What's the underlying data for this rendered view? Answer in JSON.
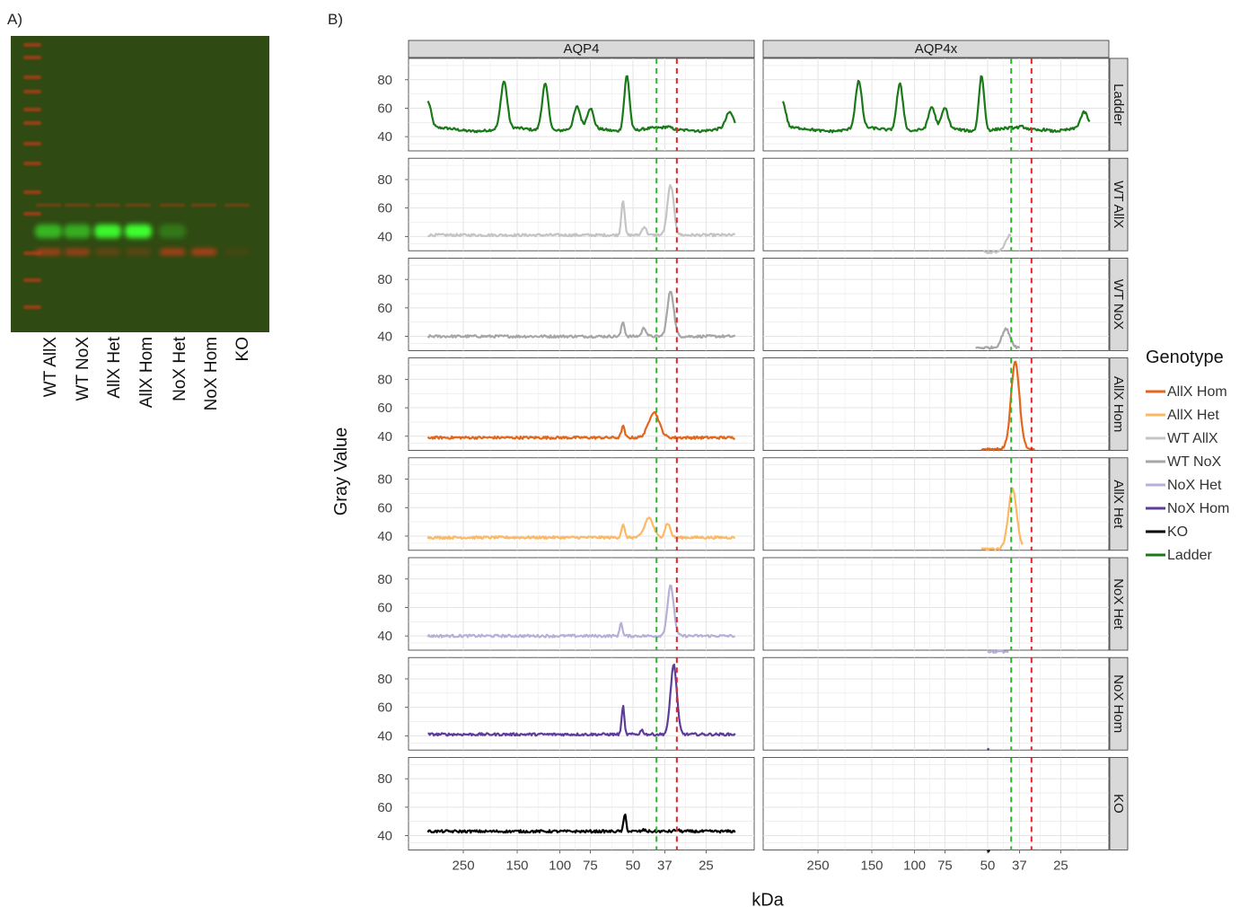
{
  "panel_labels": {
    "a": "A)",
    "b": "B)"
  },
  "gel": {
    "lanes": [
      "WT AllX",
      "WT NoX",
      "AllX Het",
      "AllX Hom",
      "NoX Het",
      "NoX Hom",
      "KO"
    ],
    "background_color": "#2f4a12",
    "red_channel_color": "#d23a1a",
    "green_channel_color": "#3cff2e"
  },
  "chart_data": {
    "type": "line",
    "facet_columns": [
      "AQP4",
      "AQP4x"
    ],
    "facet_rows": [
      "Ladder",
      "WT AllX",
      "WT NoX",
      "AllX Hom",
      "AllX Het",
      "NoX Het",
      "NoX Hom",
      "KO"
    ],
    "xlabel": "kDa",
    "ylabel": "Gray Value",
    "x_ticks": [
      250,
      150,
      100,
      75,
      50,
      37,
      25
    ],
    "x_tick_labels": [
      "250",
      "150",
      "100",
      "75",
      "50",
      "37",
      "25"
    ],
    "y_ticks": [
      40,
      60,
      80
    ],
    "ylim": [
      30,
      95
    ],
    "grid": true,
    "reference_lines": [
      {
        "x": 40,
        "color": "#2db52d",
        "style": "dashed"
      },
      {
        "x": 33,
        "color": "#e3242b",
        "style": "dashed"
      }
    ],
    "legend": {
      "title": "Genotype",
      "position": "right",
      "entries": [
        "AllX Hom",
        "AllX Het",
        "WT AllX",
        "WT NoX",
        "NoX Het",
        "NoX Hom",
        "KO",
        "Ladder"
      ]
    },
    "colors": {
      "Ladder": "#1a7a1a",
      "WT AllX": "#c4c4c4",
      "WT NoX": "#a6a6a6",
      "AllX Hom": "#e2661b",
      "AllX Het": "#fdb863",
      "NoX Het": "#b7b0d6",
      "NoX Hom": "#5e3c99",
      "KO": "#000000"
    },
    "series": [
      {
        "facet": "AQP4",
        "row": "Ladder",
        "baseline": 45,
        "peaks": [
          [
            350,
            64,
            0.03
          ],
          [
            170,
            78,
            0.03
          ],
          [
            115,
            78,
            0.03
          ],
          [
            85,
            60,
            0.03
          ],
          [
            75,
            59,
            0.03
          ],
          [
            53,
            84,
            0.025
          ],
          [
            36,
            46,
            0.03
          ],
          [
            29,
            46,
            0.03
          ],
          [
            20,
            56,
            0.035
          ]
        ]
      },
      {
        "facet": "AQP4",
        "row": "WT AllX",
        "baseline": 41,
        "peaks": [
          [
            55,
            66,
            0.015
          ],
          [
            45,
            47,
            0.02
          ],
          [
            35,
            76,
            0.03
          ]
        ]
      },
      {
        "facet": "AQP4",
        "row": "WT NoX",
        "baseline": 40,
        "peaks": [
          [
            55,
            50,
            0.015
          ],
          [
            45,
            46,
            0.02
          ],
          [
            35,
            72,
            0.03
          ]
        ]
      },
      {
        "facet": "AQP4",
        "row": "AllX Hom",
        "baseline": 39,
        "peaks": [
          [
            55,
            47,
            0.015
          ],
          [
            41,
            57,
            0.05
          ]
        ]
      },
      {
        "facet": "AQP4",
        "row": "AllX Het",
        "baseline": 39,
        "peaks": [
          [
            55,
            48,
            0.015
          ],
          [
            43,
            53,
            0.04
          ],
          [
            36,
            49,
            0.025
          ]
        ]
      },
      {
        "facet": "AQP4",
        "row": "NoX Het",
        "baseline": 40,
        "peaks": [
          [
            56,
            50,
            0.012
          ],
          [
            35,
            75,
            0.03
          ]
        ]
      },
      {
        "facet": "AQP4",
        "row": "NoX Hom",
        "baseline": 41,
        "peaks": [
          [
            55,
            61,
            0.012
          ],
          [
            46,
            44,
            0.015
          ],
          [
            34,
            90,
            0.03
          ]
        ]
      },
      {
        "facet": "AQP4",
        "row": "KO",
        "baseline": 43,
        "peaks": [
          [
            54,
            55,
            0.012
          ],
          [
            45,
            44,
            0.015
          ],
          [
            33,
            44,
            0.02
          ]
        ]
      },
      {
        "facet": "AQP4x",
        "row": "Ladder",
        "baseline": 45,
        "peaks": [
          [
            350,
            64,
            0.03
          ],
          [
            170,
            78,
            0.03
          ],
          [
            115,
            78,
            0.03
          ],
          [
            85,
            60,
            0.03
          ],
          [
            75,
            59,
            0.03
          ],
          [
            53,
            84,
            0.025
          ],
          [
            36,
            46,
            0.03
          ],
          [
            29,
            46,
            0.03
          ],
          [
            20,
            56,
            0.035
          ]
        ]
      },
      {
        "facet": "AQP4x",
        "row": "WT AllX",
        "range": [
          52,
          40
        ],
        "baseline": 29,
        "peaks": [
          [
            40.5,
            41,
            0.04
          ]
        ]
      },
      {
        "facet": "AQP4x",
        "row": "WT NoX",
        "range": [
          56,
          37
        ],
        "baseline": 32,
        "peaks": [
          [
            42,
            45,
            0.04
          ]
        ]
      },
      {
        "facet": "AQP4x",
        "row": "AllX Hom",
        "range": [
          53,
          32
        ],
        "baseline": 31,
        "peaks": [
          [
            38.5,
            92,
            0.04
          ]
        ]
      },
      {
        "facet": "AQP4x",
        "row": "AllX Het",
        "range": [
          53,
          36
        ],
        "baseline": 31,
        "peaks": [
          [
            39.5,
            73,
            0.04
          ]
        ]
      },
      {
        "facet": "AQP4x",
        "row": "NoX Het",
        "range": [
          50,
          41
        ],
        "baseline": 29,
        "peaks": []
      },
      {
        "facet": "AQP4x",
        "row": "NoX Hom",
        "range": [
          50,
          49.5
        ],
        "baseline": 30,
        "peaks": []
      },
      {
        "facet": "AQP4x",
        "row": "KO",
        "range": [
          50,
          49
        ],
        "baseline": 29,
        "peaks": []
      }
    ]
  }
}
